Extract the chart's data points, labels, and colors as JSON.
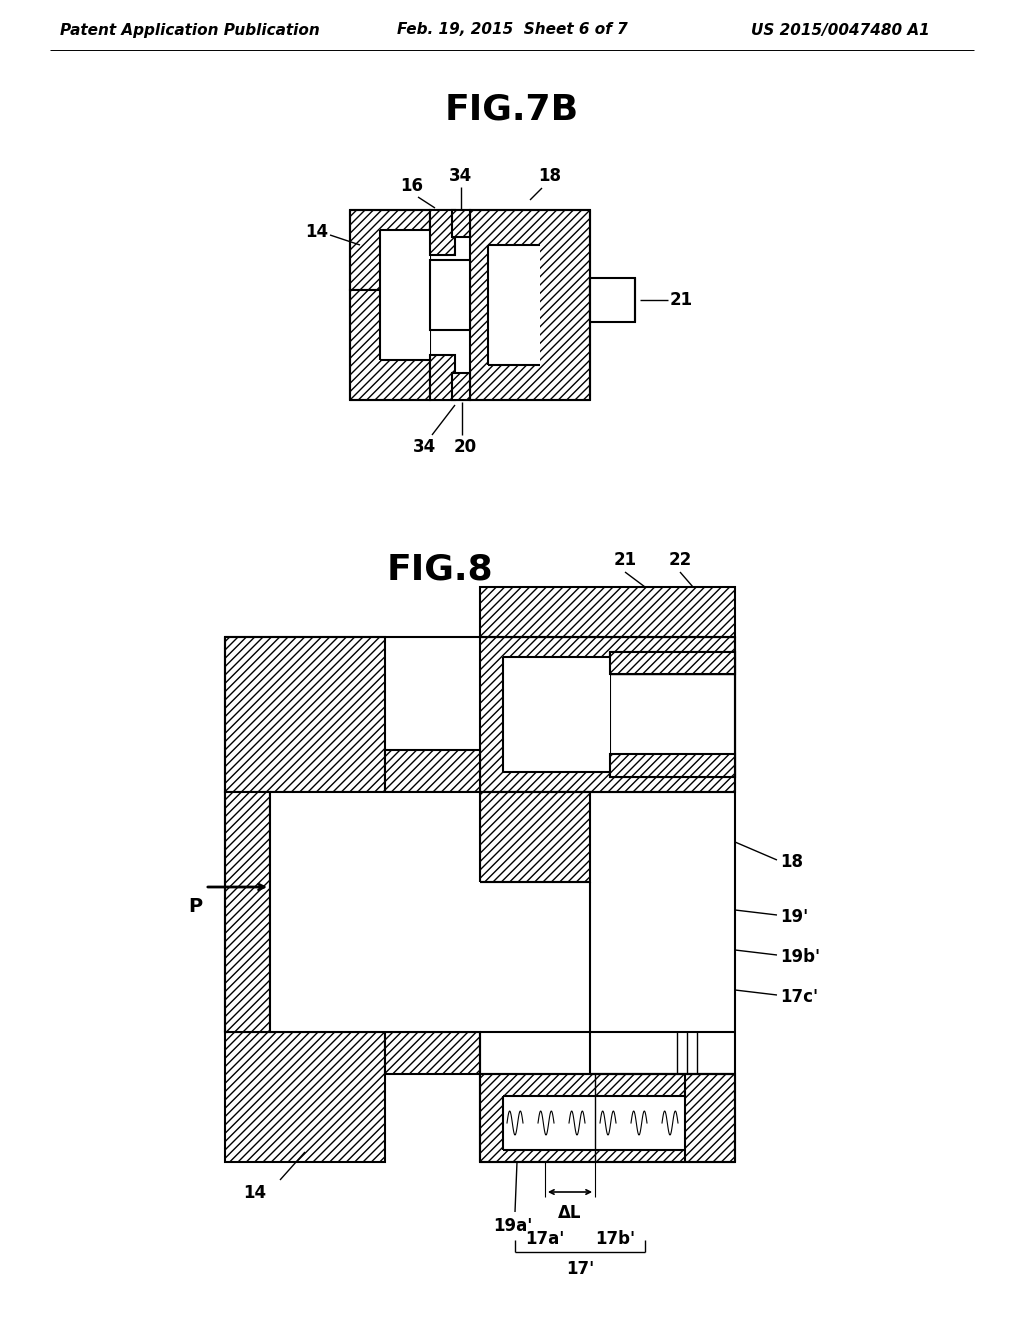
{
  "bg_color": "#ffffff",
  "header_left": "Patent Application Publication",
  "header_center": "Feb. 19, 2015  Sheet 6 of 7",
  "header_right": "US 2015/0047480 A1",
  "fig7b_title": "FIG.7B",
  "fig8_title": "FIG.8",
  "line_color": "#000000",
  "hatch_pattern": "////",
  "fig_title_fontsize": 26,
  "header_fontsize": 11,
  "label_fontsize": 12
}
